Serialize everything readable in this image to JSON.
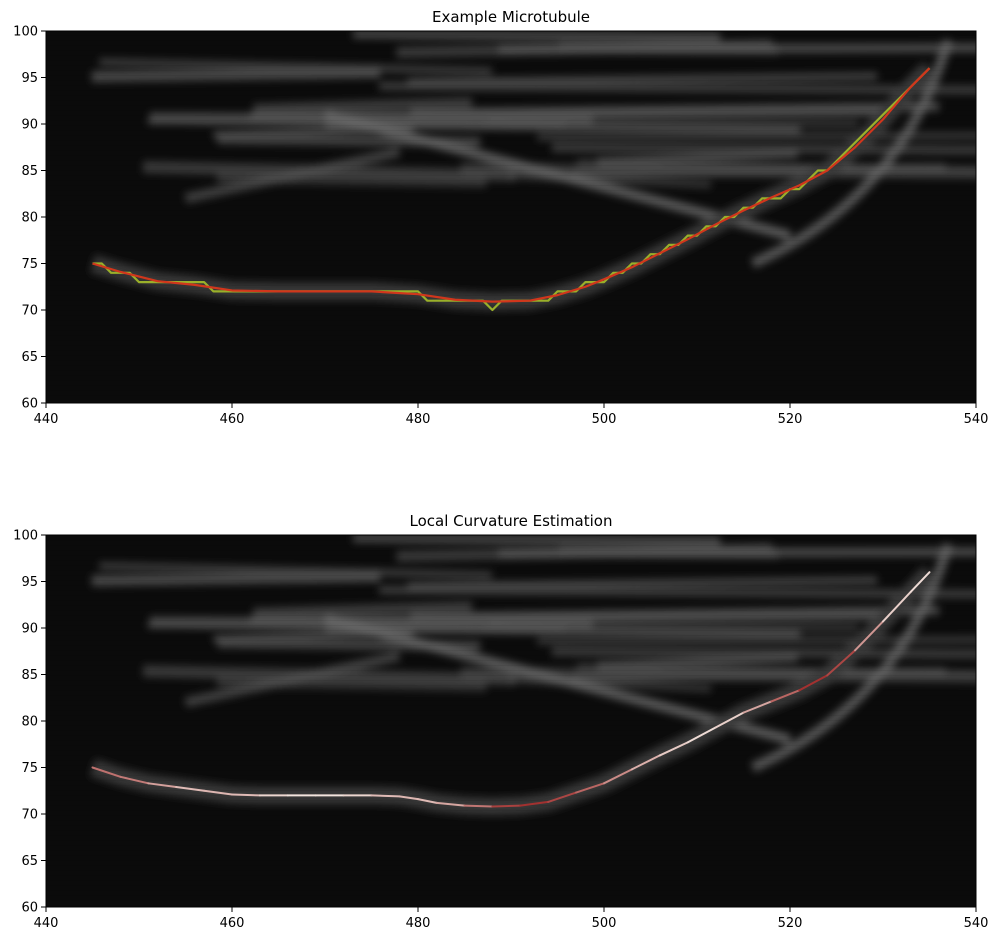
{
  "chart_data": [
    {
      "type": "line",
      "title": "Example Microtubule",
      "background": "grayscale microscopy image",
      "xlim": [
        440,
        540
      ],
      "ylim": [
        60,
        100
      ],
      "xticks": [
        "440",
        "460",
        "480",
        "500",
        "520",
        "540"
      ],
      "yticks": [
        "60",
        "65",
        "70",
        "75",
        "80",
        "85",
        "90",
        "95",
        "100"
      ],
      "grid": false,
      "series": [
        {
          "color": "#9ab02a",
          "style": "stepped pixel trace",
          "x": [
            445,
            446,
            447,
            449,
            450,
            452,
            454,
            457,
            458,
            460,
            465,
            470,
            475,
            480,
            481,
            484,
            487,
            488,
            489,
            492,
            494,
            495,
            497,
            498,
            500,
            501,
            502,
            503,
            504,
            505,
            506,
            507,
            508,
            509,
            510,
            511,
            512,
            513,
            514,
            515,
            516,
            517,
            518,
            519,
            520,
            521,
            522,
            523,
            524,
            526,
            528,
            530,
            532,
            535
          ],
          "y": [
            75,
            75,
            74,
            74,
            73,
            73,
            73,
            73,
            72,
            72,
            72,
            72,
            72,
            72,
            71,
            71,
            71,
            70,
            71,
            71,
            71,
            72,
            72,
            73,
            73,
            74,
            74,
            75,
            75,
            76,
            76,
            77,
            77,
            78,
            78,
            79,
            79,
            80,
            80,
            81,
            81,
            82,
            82,
            82,
            83,
            83,
            84,
            85,
            85,
            87,
            89,
            91,
            93,
            96
          ]
        },
        {
          "color": "#d1361c",
          "style": "smoothed trace",
          "x": [
            445,
            448,
            452,
            456,
            460,
            465,
            470,
            475,
            480,
            484,
            488,
            492,
            495,
            498,
            500,
            503,
            506,
            509,
            512,
            515,
            518,
            521,
            524,
            527,
            530,
            533,
            535
          ],
          "y": [
            75,
            74.1,
            73.1,
            72.7,
            72.1,
            72,
            72,
            72,
            71.7,
            71.1,
            70.9,
            71,
            71.6,
            72.5,
            73.3,
            74.6,
            76.1,
            77.6,
            79.2,
            80.7,
            82.1,
            83.4,
            85,
            87.5,
            90.5,
            94,
            96
          ]
        }
      ]
    },
    {
      "type": "line",
      "title": "Local Curvature Estimation",
      "background": "grayscale microscopy image",
      "xlim": [
        440,
        540
      ],
      "ylim": [
        60,
        100
      ],
      "xticks": [
        "440",
        "460",
        "480",
        "500",
        "520",
        "540"
      ],
      "yticks": [
        "60",
        "65",
        "70",
        "75",
        "80",
        "85",
        "90",
        "95",
        "100"
      ],
      "grid": false,
      "color_encoding": "local curvature (white = low, dark red = high)",
      "series": [
        {
          "style": "curvature-colored smooth trace",
          "x": [
            445,
            448,
            451,
            454,
            457,
            460,
            463,
            466,
            469,
            472,
            475,
            478,
            480,
            482,
            485,
            488,
            491,
            494,
            497,
            500,
            503,
            506,
            509,
            512,
            515,
            518,
            521,
            524,
            527,
            530,
            533,
            535
          ],
          "y": [
            75,
            74,
            73.3,
            72.9,
            72.5,
            72.1,
            72,
            72,
            72,
            72,
            72,
            71.9,
            71.6,
            71.2,
            70.9,
            70.8,
            70.9,
            71.3,
            72.3,
            73.3,
            74.8,
            76.3,
            77.7,
            79.3,
            80.9,
            82.1,
            83.3,
            84.9,
            87.6,
            90.7,
            93.9,
            96
          ],
          "curvature": [
            0.55,
            0.6,
            0.45,
            0.25,
            0.2,
            0.3,
            0.15,
            0.05,
            0.02,
            0.05,
            0.15,
            0.3,
            0.2,
            0.25,
            0.4,
            0.7,
            0.9,
            0.85,
            0.7,
            0.55,
            0.35,
            0.2,
            0.1,
            0.05,
            0.2,
            0.45,
            0.8,
            0.95,
            0.6,
            0.2,
            0.05,
            0.1
          ]
        }
      ]
    }
  ]
}
